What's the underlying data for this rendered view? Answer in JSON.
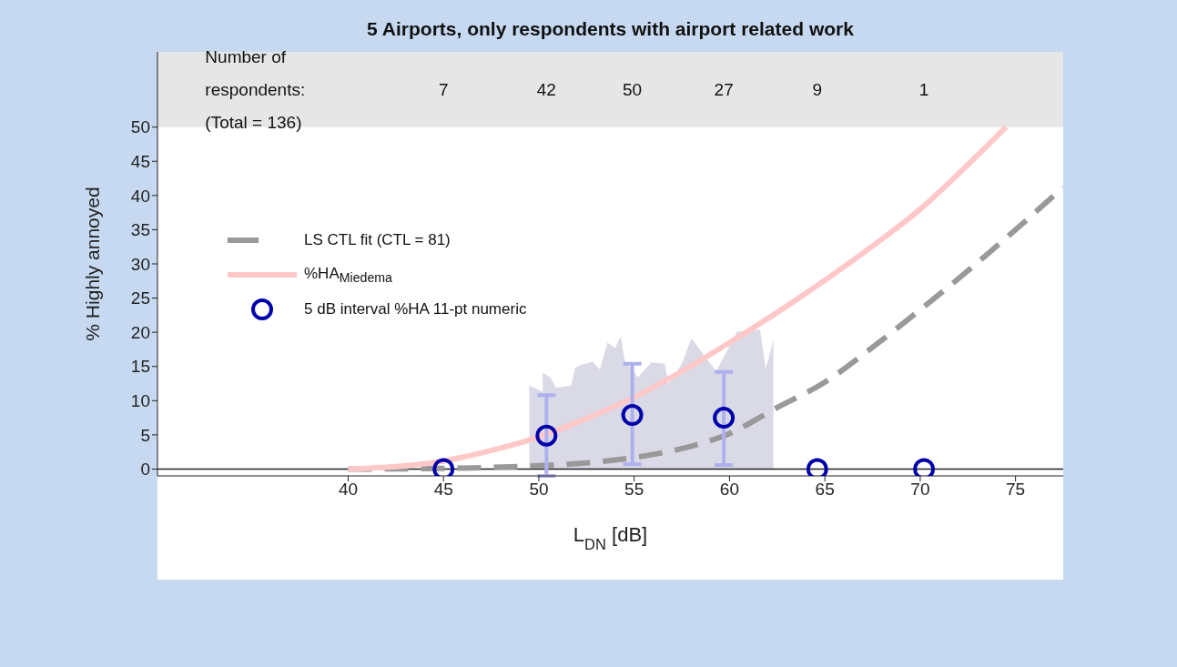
{
  "chart_data": {
    "type": "line",
    "title": "5 Airports, only respondents with airport related work",
    "xlabel": "L$_{DN}$ [dB]",
    "ylabel": "% Highly annoyed",
    "xlim": [
      30,
      77.5
    ],
    "xticks": [
      40,
      45,
      50,
      55,
      60,
      65,
      70,
      75
    ],
    "ylim": [
      -1,
      61
    ],
    "yticks": [
      0,
      5,
      10,
      15,
      20,
      25,
      30,
      35,
      40,
      45,
      50
    ],
    "grid": false,
    "legend": "left",
    "bands": [
      {
        "axis": "y",
        "from": 50,
        "to": 61,
        "color": "#e6e6e6"
      }
    ],
    "ref_lines": [
      {
        "axis": "y",
        "value": 0,
        "color": "#222222"
      }
    ],
    "annotations": [
      "Number of\nrespondents:\n(Total = 136)",
      "7",
      "42",
      "50",
      "27",
      "9",
      "1"
    ],
    "series": [
      {
        "type": "area",
        "color": "#d9dae6",
        "marker": "none",
        "x": [
          49.5,
          50.2,
          50.2,
          50.6,
          50.9,
          51.7,
          51.9,
          52.2,
          52.8,
          53.2,
          53.6,
          54.0,
          54.3,
          54.5,
          55.2,
          55.9,
          56.6,
          56.8,
          57.5,
          58.0,
          59.3,
          60.0,
          60.4,
          61.6,
          61.9,
          62.3
        ],
        "values": [
          12.2,
          11.3,
          14.1,
          13.4,
          11.9,
          12.2,
          14.8,
          15.2,
          15.7,
          14.6,
          18.5,
          17.7,
          19.4,
          15.9,
          13.4,
          15.6,
          15.4,
          12.5,
          15.4,
          19.1,
          14.3,
          18.0,
          20.1,
          20.4,
          14.6,
          18.9
        ]
      },
      {
        "name": "LS CTL fit (CTL = 81)",
        "color": "#999999",
        "line_style": "dashed",
        "marker": "none",
        "x": [
          40,
          45,
          50,
          52.5,
          55,
          57.5,
          60,
          62.5,
          65,
          67.5,
          70,
          72.5,
          75,
          77.5
        ],
        "values": [
          0,
          0.1,
          0.5,
          0.9,
          1.7,
          3.0,
          5.2,
          9.0,
          12.7,
          17.8,
          23.3,
          29,
          35,
          41.2
        ]
      },
      {
        "name": "%HA$_{Miedema}$",
        "color": "#ffc8c8",
        "line_style": "solid",
        "marker": "none",
        "x": [
          40,
          45,
          47.5,
          50,
          52.5,
          55,
          57.5,
          60,
          62.5,
          65,
          67.5,
          70,
          72.5,
          74.5
        ],
        "values": [
          0,
          1.2,
          2.7,
          4.7,
          7.4,
          10.5,
          14.3,
          18.5,
          22.9,
          27.6,
          32.6,
          38,
          44.5,
          50
        ]
      },
      {
        "type": "scatter",
        "name": "5 dB interval %HA 11-pt numeric",
        "color": "#0000aa",
        "marker": "circle",
        "x": [
          45,
          50.4,
          54.9,
          59.7,
          64.6,
          70.2
        ],
        "values": [
          0,
          4.9,
          7.9,
          7.5,
          0,
          0
        ],
        "errors": [
          null,
          [
            -1,
            10.8
          ],
          [
            0.7,
            15.4
          ],
          [
            0.6,
            14.2
          ],
          null,
          null
        ]
      }
    ]
  }
}
